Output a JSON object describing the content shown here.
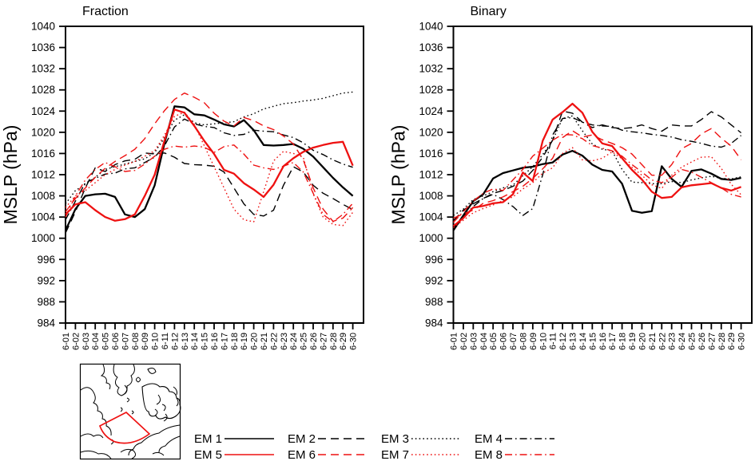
{
  "figure": {
    "ylabel": "MSLP (hPa)",
    "colors": {
      "black": "#000000",
      "red": "#ee1111"
    }
  },
  "legend": {
    "entries": [
      {
        "label": "EM 1",
        "color": "#000000",
        "dash": "solid"
      },
      {
        "label": "EM 2",
        "color": "#000000",
        "dash": "dash"
      },
      {
        "label": "EM 3",
        "color": "#000000",
        "dash": "dot"
      },
      {
        "label": "EM 4",
        "color": "#000000",
        "dash": "dashdot"
      },
      {
        "label": "EM 5",
        "color": "#ee1111",
        "dash": "solid"
      },
      {
        "label": "EM 6",
        "color": "#ee1111",
        "dash": "dash"
      },
      {
        "label": "EM 7",
        "color": "#ee1111",
        "dash": "dot"
      },
      {
        "label": "EM 8",
        "color": "#ee1111",
        "dash": "dashdot"
      }
    ]
  },
  "map_inset": {
    "description": "polar-stereographic coastline map with red sector outline over Arctic study region",
    "outline_color": "#ee1111"
  },
  "chart_data": [
    {
      "type": "line",
      "title": "Fraction",
      "ylabel": "MSLP (hPa)",
      "ylim": [
        984,
        1040
      ],
      "y_ticks": [
        984,
        988,
        992,
        996,
        1000,
        1004,
        1008,
        1012,
        1016,
        1020,
        1024,
        1028,
        1032,
        1036,
        1040
      ],
      "x_categories": [
        "6-01",
        "6-02",
        "6-03",
        "6-04",
        "6-05",
        "6-06",
        "6-07",
        "6-08",
        "6-09",
        "6-10",
        "6-11",
        "6-12",
        "6-13",
        "6-14",
        "6-15",
        "6-16",
        "6-17",
        "6-18",
        "6-19",
        "6-20",
        "6-21",
        "6-22",
        "6-23",
        "6-24",
        "6-25",
        "6-26",
        "6-27",
        "6-28",
        "6-29",
        "6-30"
      ],
      "grid": false,
      "legend_position": "below-figure",
      "series": [
        {
          "name": "EM 1",
          "color": "#000000",
          "dash": "solid",
          "values": [
            1001.5,
            1005.5,
            1008.0,
            1008.3,
            1008.4,
            1007.8,
            1004.5,
            1004.0,
            1005.5,
            1010.0,
            1018.0,
            1024.9,
            1024.7,
            1023.4,
            1023.2,
            1022.4,
            1021.5,
            1021.1,
            1022.3,
            1020.4,
            1017.6,
            1017.5,
            1017.6,
            1017.8,
            1016.9,
            1015.4,
            1013.4,
            1011.4,
            1009.6,
            1008.0
          ]
        },
        {
          "name": "EM 2",
          "color": "#000000",
          "dash": "dash",
          "values": [
            1001.0,
            1005.0,
            1009.5,
            1013.3,
            1012.6,
            1013.9,
            1014.6,
            1014.9,
            1016.1,
            1015.9,
            1016.1,
            1015.3,
            1014.1,
            1013.9,
            1013.8,
            1013.6,
            1012.5,
            1009.5,
            1006.5,
            1004.5,
            1004.2,
            1005.3,
            1010.0,
            1013.5,
            1012.5,
            1010.0,
            1008.5,
            1007.5,
            1006.4,
            1005.4
          ]
        },
        {
          "name": "EM 3",
          "color": "#000000",
          "dash": "dot",
          "values": [
            1006.5,
            1009.0,
            1010.2,
            1011.5,
            1013.0,
            1013.5,
            1014.0,
            1014.5,
            1015.0,
            1016.2,
            1019.0,
            1022.3,
            1023.3,
            1021.8,
            1021.4,
            1021.6,
            1021.8,
            1022.0,
            1022.9,
            1023.5,
            1024.4,
            1024.9,
            1025.4,
            1025.6,
            1025.9,
            1026.1,
            1026.4,
            1026.9,
            1027.4,
            1027.6
          ]
        },
        {
          "name": "EM 4",
          "color": "#000000",
          "dash": "dashdot",
          "values": [
            1003.5,
            1007.0,
            1010.5,
            1011.3,
            1012.1,
            1012.3,
            1013.1,
            1013.3,
            1014.3,
            1015.3,
            1017.5,
            1021.0,
            1022.5,
            1021.6,
            1021.1,
            1020.9,
            1019.9,
            1019.4,
            1019.6,
            1020.4,
            1020.2,
            1020.1,
            1019.5,
            1019.0,
            1018.0,
            1016.6,
            1015.8,
            1014.8,
            1014.0,
            1013.4
          ]
        },
        {
          "name": "EM 5",
          "color": "#ee1111",
          "dash": "solid",
          "values": [
            1004.5,
            1006.4,
            1006.8,
            1005.3,
            1004.0,
            1003.3,
            1003.6,
            1004.5,
            1008.0,
            1012.0,
            1018.5,
            1024.3,
            1023.7,
            1021.2,
            1018.4,
            1015.9,
            1012.9,
            1012.2,
            1010.4,
            1009.2,
            1007.8,
            1010.1,
            1013.6,
            1015.1,
            1016.3,
            1017.1,
            1017.6,
            1018.0,
            1018.2,
            1013.7
          ]
        },
        {
          "name": "EM 6",
          "color": "#ee1111",
          "dash": "dash",
          "values": [
            1005.0,
            1007.5,
            1009.5,
            1011.5,
            1013.2,
            1014.5,
            1015.6,
            1016.8,
            1018.8,
            1021.6,
            1024.1,
            1026.2,
            1027.4,
            1026.6,
            1025.6,
            1023.6,
            1022.1,
            1021.2,
            1022.8,
            1022.2,
            1021.2,
            1020.5,
            1019.3,
            1017.8,
            1014.8,
            1009.5,
            1005.5,
            1003.2,
            1003.8,
            1005.8
          ]
        },
        {
          "name": "EM 7",
          "color": "#ee1111",
          "dash": "dot",
          "values": [
            1005.8,
            1008.0,
            1009.0,
            1010.5,
            1012.0,
            1013.0,
            1013.8,
            1014.5,
            1015.5,
            1016.5,
            1019.5,
            1023.0,
            1023.8,
            1021.5,
            1017.5,
            1013.5,
            1009.5,
            1005.5,
            1003.5,
            1003.1,
            1008.8,
            1014.6,
            1016.4,
            1016.0,
            1015.3,
            1008.4,
            1004.0,
            1002.6,
            1002.4,
            1004.9
          ]
        },
        {
          "name": "EM 8",
          "color": "#ee1111",
          "dash": "dashdot",
          "values": [
            1004.0,
            1008.0,
            1011.0,
            1013.0,
            1014.3,
            1013.5,
            1012.6,
            1012.8,
            1014.0,
            1015.5,
            1016.8,
            1017.4,
            1017.2,
            1017.4,
            1017.2,
            1016.2,
            1017.3,
            1017.6,
            1015.9,
            1013.8,
            1013.3,
            1013.0,
            1013.6,
            1014.3,
            1012.5,
            1008.5,
            1004.5,
            1003.1,
            1004.5,
            1006.6
          ]
        }
      ]
    },
    {
      "type": "line",
      "title": "Binary",
      "ylabel": "MSLP (hPa)",
      "ylim": [
        984,
        1040
      ],
      "y_ticks": [
        984,
        988,
        992,
        996,
        1000,
        1004,
        1008,
        1012,
        1016,
        1020,
        1024,
        1028,
        1032,
        1036,
        1040
      ],
      "x_categories": [
        "6-01",
        "6-02",
        "6-03",
        "6-04",
        "6-05",
        "6-06",
        "6-07",
        "6-08",
        "6-09",
        "6-10",
        "6-11",
        "6-12",
        "6-13",
        "6-14",
        "6-15",
        "6-16",
        "6-17",
        "6-18",
        "6-19",
        "6-20",
        "6-21",
        "6-22",
        "6-23",
        "6-24",
        "6-25",
        "6-26",
        "6-27",
        "6-28",
        "6-29",
        "6-30"
      ],
      "grid": false,
      "legend_position": "below-figure",
      "series": [
        {
          "name": "EM 1",
          "color": "#000000",
          "dash": "solid",
          "values": [
            1001.5,
            1004.3,
            1007.0,
            1008.3,
            1011.3,
            1012.3,
            1012.8,
            1013.3,
            1013.5,
            1014.0,
            1014.3,
            1015.8,
            1016.5,
            1015.6,
            1013.9,
            1012.9,
            1012.6,
            1010.3,
            1005.2,
            1004.8,
            1005.1,
            1013.6,
            1011.2,
            1009.7,
            1012.7,
            1013.0,
            1012.2,
            1011.2,
            1011.0,
            1011.4
          ]
        },
        {
          "name": "EM 2",
          "color": "#000000",
          "dash": "dash",
          "values": [
            1003.3,
            1005.3,
            1006.5,
            1007.5,
            1008.5,
            1009.0,
            1009.8,
            1010.8,
            1012.8,
            1015.3,
            1018.5,
            1024.0,
            1023.6,
            1021.9,
            1020.9,
            1021.4,
            1020.9,
            1020.7,
            1020.9,
            1021.4,
            1020.7,
            1020.2,
            1021.4,
            1021.2,
            1021.2,
            1022.4,
            1023.9,
            1022.9,
            1021.4,
            1019.9
          ]
        },
        {
          "name": "EM 3",
          "color": "#000000",
          "dash": "dot",
          "values": [
            1004.3,
            1005.5,
            1007.3,
            1008.0,
            1008.8,
            1009.5,
            1010.0,
            1011.8,
            1013.5,
            1015.8,
            1018.5,
            1022.6,
            1023.1,
            1020.3,
            1017.8,
            1016.8,
            1016.5,
            1013.0,
            1010.6,
            1010.5,
            1010.3,
            1010.3,
            1010.7,
            1010.5,
            1011.0,
            1011.4,
            1011.7,
            1011.3,
            1011.2,
            1011.6
          ]
        },
        {
          "name": "EM 4",
          "color": "#000000",
          "dash": "dashdot",
          "values": [
            1002.0,
            1004.0,
            1006.0,
            1007.5,
            1008.3,
            1007.3,
            1006.0,
            1004.3,
            1005.6,
            1012.0,
            1019.5,
            1022.6,
            1022.8,
            1021.9,
            1021.4,
            1021.2,
            1021.1,
            1020.4,
            1020.1,
            1019.9,
            1019.6,
            1019.4,
            1019.1,
            1018.6,
            1018.3,
            1017.9,
            1017.4,
            1017.2,
            1017.9,
            1019.4
          ]
        },
        {
          "name": "EM 5",
          "color": "#ee1111",
          "dash": "solid",
          "values": [
            1002.3,
            1003.8,
            1005.8,
            1006.1,
            1006.6,
            1006.8,
            1008.3,
            1012.4,
            1010.8,
            1018.4,
            1022.4,
            1023.8,
            1025.4,
            1023.7,
            1020.1,
            1017.9,
            1017.4,
            1015.1,
            1012.9,
            1011.1,
            1008.8,
            1007.6,
            1007.8,
            1009.6,
            1010.0,
            1010.2,
            1010.4,
            1009.5,
            1009.0,
            1009.7
          ]
        },
        {
          "name": "EM 6",
          "color": "#ee1111",
          "dash": "dash",
          "values": [
            1003.8,
            1004.6,
            1005.3,
            1006.6,
            1007.1,
            1007.8,
            1008.8,
            1009.8,
            1011.3,
            1013.1,
            1015.1,
            1019.0,
            1020.3,
            1019.1,
            1019.5,
            1018.6,
            1017.9,
            1017.1,
            1015.9,
            1013.9,
            1011.9,
            1011.9,
            1013.9,
            1016.9,
            1017.9,
            1019.7,
            1020.7,
            1018.9,
            1017.4,
            1014.8
          ]
        },
        {
          "name": "EM 7",
          "color": "#ee1111",
          "dash": "dot",
          "values": [
            1002.0,
            1003.4,
            1004.8,
            1005.6,
            1006.3,
            1007.1,
            1007.8,
            1009.3,
            1010.5,
            1012.3,
            1013.3,
            1016.0,
            1017.1,
            1014.8,
            1014.6,
            1015.1,
            1016.3,
            1015.0,
            1013.4,
            1011.9,
            1010.1,
            1009.4,
            1011.9,
            1013.4,
            1014.4,
            1015.3,
            1015.4,
            1013.2,
            1010.2,
            1008.2
          ]
        },
        {
          "name": "EM 8",
          "color": "#ee1111",
          "dash": "dashdot",
          "values": [
            1003.0,
            1005.0,
            1007.0,
            1008.5,
            1009.3,
            1009.0,
            1011.0,
            1013.0,
            1015.5,
            1017.0,
            1018.5,
            1019.6,
            1019.5,
            1018.8,
            1017.5,
            1017.0,
            1016.5,
            1015.5,
            1013.9,
            1012.5,
            1011.0,
            1010.5,
            1011.5,
            1013.0,
            1012.5,
            1011.5,
            1010.5,
            1009.5,
            1008.3,
            1007.8
          ]
        }
      ]
    }
  ]
}
